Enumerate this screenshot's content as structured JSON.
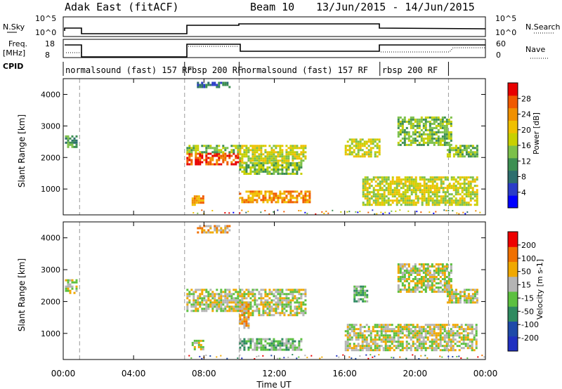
{
  "header": {
    "title": "Adak East (fitACF)",
    "beam": "Beam 10",
    "date_range": "13/Jun/2015 - 14/Jun/2015"
  },
  "panels": {
    "nsky_label": "N.Sky",
    "nsky_ticks": [
      "10^5",
      "10^0"
    ],
    "nsearch_label": "N.Search",
    "nsearch_ticks": [
      "10^5",
      "10^0"
    ],
    "freq_label": "Freq.",
    "freq_unit": "[MHz]",
    "freq_ticks": [
      "18",
      "8"
    ],
    "nave_label": "Nave",
    "nave_ticks": [
      "60",
      "0"
    ],
    "cpid_label": "CPID",
    "cpid_segments": [
      {
        "label": "normalsound (fast) 157 RF",
        "start": 0.0,
        "end": 0.93
      },
      {
        "label": "rbsp 200 RF",
        "start": 6.9,
        "end": 10.0
      },
      {
        "label": "normalsound (fast) 157 RF",
        "start": 10.0,
        "end": 18.0
      },
      {
        "label": "rbsp 200 RF",
        "start": 18.0,
        "end": 21.9
      }
    ]
  },
  "power_colorbar": {
    "label": "Power [dB]",
    "ticks": [
      "28",
      "24",
      "20",
      "16",
      "12",
      "8",
      "4"
    ],
    "colors": [
      "#0000ff",
      "#2a3cc8",
      "#2d6e6e",
      "#3d8f52",
      "#7cc04a",
      "#c8d000",
      "#f0c000",
      "#f09000",
      "#f05a00",
      "#e80000"
    ]
  },
  "velocity_colorbar": {
    "label": "Velocity [m s-1]",
    "ticks": [
      "200",
      "100",
      "50",
      "15",
      "-15",
      "-50",
      "-100",
      "-200"
    ],
    "colors": [
      "#2030c0",
      "#1e4aa8",
      "#2e8a60",
      "#5cc040",
      "#b4b4b4",
      "#f0a800",
      "#f07000",
      "#ee0000"
    ]
  },
  "chart_data": [
    {
      "type": "heatmap",
      "name": "power",
      "ylabel": "Slant Range [km]",
      "xlabel": "Time UT",
      "xlim_hours": [
        0,
        24
      ],
      "ylim_km": [
        180,
        4500
      ],
      "yticks": [
        "1000",
        "2000",
        "3000",
        "4000"
      ],
      "xticks": [
        "00:00",
        "04:00",
        "08:00",
        "12:00",
        "16:00",
        "20:00",
        "00:00"
      ],
      "regions": [
        {
          "t0": 0.1,
          "t1": 0.8,
          "r0": 2300,
          "r1": 2700,
          "level": 3
        },
        {
          "t0": 7.0,
          "t1": 10.0,
          "r0": 1750,
          "r1": 2150,
          "level": 8
        },
        {
          "t0": 7.0,
          "t1": 10.0,
          "r0": 2150,
          "r1": 2400,
          "level": 4
        },
        {
          "t0": 7.3,
          "t1": 8.0,
          "r0": 500,
          "r1": 800,
          "level": 7
        },
        {
          "t0": 10.0,
          "t1": 13.8,
          "r0": 1850,
          "r1": 2400,
          "level": 5
        },
        {
          "t0": 10.0,
          "t1": 13.5,
          "r0": 1500,
          "r1": 1850,
          "level": 4
        },
        {
          "t0": 10.0,
          "t1": 14.0,
          "r0": 550,
          "r1": 950,
          "level": 7
        },
        {
          "t0": 16.0,
          "t1": 18.0,
          "r0": 2000,
          "r1": 2600,
          "level": 5
        },
        {
          "t0": 17.0,
          "t1": 23.5,
          "r0": 500,
          "r1": 1400,
          "level": 5
        },
        {
          "t0": 19.0,
          "t1": 22.0,
          "r0": 2400,
          "r1": 3300,
          "level": 4
        },
        {
          "t0": 21.8,
          "t1": 23.5,
          "r0": 2000,
          "r1": 2400,
          "level": 4
        },
        {
          "t0": 7.6,
          "t1": 9.5,
          "r0": 4200,
          "r1": 4400,
          "level": 2
        }
      ]
    },
    {
      "type": "heatmap",
      "name": "velocity",
      "ylabel": "Slant Range [km]",
      "xlabel": "Time UT",
      "xlim_hours": [
        0,
        24
      ],
      "ylim_km": [
        180,
        4500
      ],
      "yticks": [
        "1000",
        "2000",
        "3000",
        "4000"
      ],
      "xticks": [
        "00:00",
        "04:00",
        "08:00",
        "12:00",
        "16:00",
        "20:00",
        "00:00"
      ],
      "regions": [
        {
          "t0": 0.1,
          "t1": 0.8,
          "r0": 2300,
          "r1": 2700,
          "level": 4
        },
        {
          "t0": 7.0,
          "t1": 10.0,
          "r0": 1700,
          "r1": 2400,
          "level": 4
        },
        {
          "t0": 7.3,
          "t1": 8.0,
          "r0": 500,
          "r1": 800,
          "level": 4
        },
        {
          "t0": 10.0,
          "t1": 13.8,
          "r0": 1600,
          "r1": 2400,
          "level": 4
        },
        {
          "t0": 10.0,
          "t1": 10.5,
          "r0": 1200,
          "r1": 2000,
          "level": 5
        },
        {
          "t0": 10.0,
          "t1": 13.5,
          "r0": 500,
          "r1": 850,
          "level": 3
        },
        {
          "t0": 16.5,
          "t1": 17.3,
          "r0": 2000,
          "r1": 2500,
          "level": 3
        },
        {
          "t0": 16.0,
          "t1": 23.5,
          "r0": 500,
          "r1": 1300,
          "level": 4
        },
        {
          "t0": 19.0,
          "t1": 22.0,
          "r0": 2300,
          "r1": 3200,
          "level": 4
        },
        {
          "t0": 21.8,
          "t1": 23.5,
          "r0": 2000,
          "r1": 2400,
          "level": 4
        },
        {
          "t0": 7.6,
          "t1": 9.5,
          "r0": 4200,
          "r1": 4400,
          "level": 5
        }
      ]
    }
  ]
}
